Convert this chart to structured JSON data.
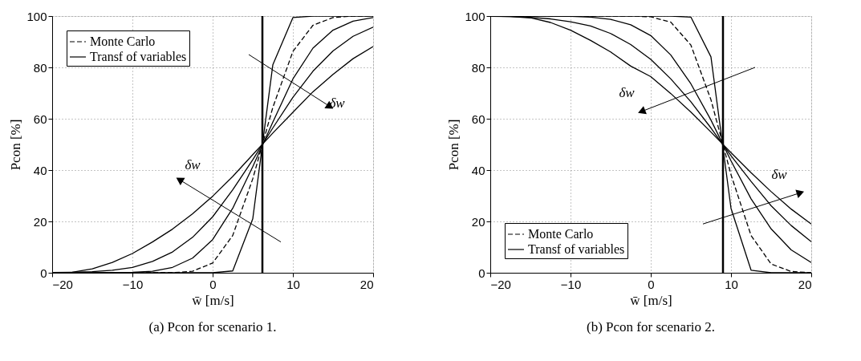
{
  "chart_data": [
    {
      "type": "line",
      "title": "(a) Pcon for scenario 1.",
      "xlabel": "w̄ [m/s]",
      "ylabel": "Pcon [%]",
      "x": [
        -20,
        -17.5,
        -15,
        -12.5,
        -10,
        -7.5,
        -5,
        -2.5,
        0,
        2.5,
        5,
        7.5,
        10,
        12.5,
        15,
        17.5,
        20
      ],
      "series": [
        {
          "name": "Monte Carlo",
          "color": "#000000",
          "line_style": "dashed",
          "values": [
            0,
            0,
            0,
            0,
            0,
            0,
            0,
            0.6,
            3.8,
            14.5,
            36.6,
            64.4,
            86.2,
            96.4,
            99.4,
            100,
            100
          ]
        },
        {
          "name": "Transf of variables",
          "color": "#000000",
          "line_style": "solid",
          "values": [
            0,
            0,
            0,
            0,
            0,
            0,
            0,
            0,
            0,
            0.7,
            21,
            81,
            99.4,
            100,
            100,
            100,
            100
          ]
        },
        {
          "color": "#000000",
          "line_style": "solid",
          "values": [
            0,
            0,
            0,
            0,
            0.2,
            0.6,
            2.1,
            5.7,
            12.9,
            25.1,
            41.3,
            58.7,
            75.5,
            87.5,
            94.5,
            98,
            99.4
          ]
        },
        {
          "color": "#000000",
          "line_style": "solid",
          "values": [
            0.1,
            0.2,
            0.4,
            1.0,
            2.1,
            4.4,
            8.1,
            13.8,
            21.8,
            32.3,
            44,
            56.4,
            68.3,
            78.5,
            86.4,
            92.1,
            95.7
          ]
        },
        {
          "color": "#000000",
          "line_style": "solid",
          "values": [
            0,
            0.2,
            1.5,
            4,
            7.5,
            12,
            17,
            23,
            29.8,
            37.5,
            46,
            54.4,
            62.5,
            70.5,
            77.3,
            83.4,
            88.1
          ]
        }
      ],
      "ref_lines": [
        {
          "axis": "x",
          "value": 6.2,
          "color": "#000000"
        }
      ],
      "annotations": [
        "δw",
        "δw"
      ],
      "xlim": [
        -20,
        20
      ],
      "ylim": [
        0,
        100
      ],
      "xticks": [
        -20,
        -10,
        0,
        10,
        20
      ],
      "yticks": [
        0,
        20,
        40,
        60,
        80,
        100
      ],
      "grid": true,
      "legend": "top left"
    },
    {
      "type": "line",
      "title": "(b) Pcon for scenario 2.",
      "xlabel": "w̄ [m/s]",
      "ylabel": "Pcon [%]",
      "x": [
        -20,
        -17.5,
        -15,
        -12.5,
        -10,
        -7.5,
        -5,
        -2.5,
        0,
        2.5,
        5,
        7.5,
        10,
        12.5,
        15,
        17.5,
        20
      ],
      "series": [
        {
          "name": "Monte Carlo",
          "color": "#000000",
          "line_style": "dashed",
          "values": [
            100,
            100,
            100,
            100,
            100,
            100,
            100,
            100,
            99.7,
            97.6,
            88.7,
            67.4,
            38.2,
            14.5,
            3.4,
            0.5,
            0
          ]
        },
        {
          "name": "Transf of variables",
          "color": "#000000",
          "line_style": "solid",
          "values": [
            100,
            100,
            100,
            100,
            100,
            100,
            100,
            100,
            100,
            100,
            99.6,
            84.1,
            25.1,
            1.0,
            0,
            0,
            0
          ]
        },
        {
          "color": "#000000",
          "line_style": "solid",
          "values": [
            100,
            100,
            100,
            100,
            99.9,
            99.6,
            98.7,
            96.6,
            92.4,
            84.8,
            73.6,
            59.5,
            43.6,
            28.8,
            17.1,
            8.9,
            4.0
          ]
        },
        {
          "color": "#000000",
          "line_style": "solid",
          "values": [
            99.9,
            99.8,
            99.5,
            98.9,
            97.8,
            96.1,
            93.2,
            88.9,
            83.1,
            75.5,
            66.6,
            56.4,
            45.6,
            35.6,
            26.1,
            18.4,
            12.1
          ]
        },
        {
          "color": "#000000",
          "line_style": "solid",
          "values": [
            100,
            99.8,
            99.3,
            97.5,
            94.5,
            90.5,
            86,
            80.5,
            76.4,
            69.8,
            62.6,
            54.8,
            46.8,
            39,
            31.6,
            24.8,
            19
          ]
        }
      ],
      "ref_lines": [
        {
          "axis": "x",
          "value": 9,
          "color": "#000000"
        }
      ],
      "annotations": [
        "δw",
        "δw"
      ],
      "xlim": [
        -20,
        20
      ],
      "ylim": [
        0,
        100
      ],
      "xticks": [
        -20,
        -10,
        0,
        10,
        20
      ],
      "yticks": [
        0,
        20,
        40,
        60,
        80,
        100
      ],
      "grid": true,
      "legend": "bottom left"
    }
  ]
}
